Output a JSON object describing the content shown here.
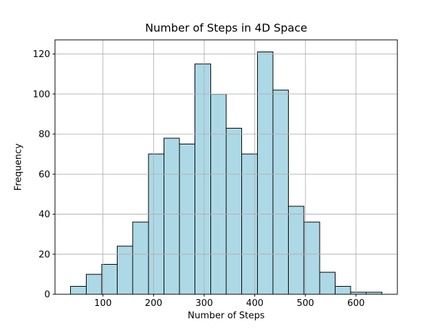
{
  "chart_data": {
    "type": "bar",
    "subtype": "histogram",
    "title": "Number of Steps in 4D Space",
    "xlabel": "Number of Steps",
    "ylabel": "Frequency",
    "bin_edges": [
      36,
      66.75,
      97.5,
      128.25,
      159,
      189.75,
      220.5,
      251.25,
      282,
      312.75,
      343.5,
      374.25,
      405,
      435.75,
      466.5,
      497.25,
      528,
      558.75,
      589.5,
      620.25,
      651
    ],
    "counts": [
      4,
      10,
      15,
      24,
      36,
      70,
      78,
      75,
      115,
      100,
      83,
      70,
      121,
      102,
      44,
      36,
      11,
      4,
      1,
      1
    ],
    "total_samples": 1000,
    "xlim": [
      5.25,
      681.75
    ],
    "ylim": [
      0,
      127.05
    ],
    "xticks": [
      100,
      200,
      300,
      400,
      500,
      600
    ],
    "yticks": [
      0,
      20,
      40,
      60,
      80,
      100,
      120
    ],
    "grid": true,
    "grid_above_bars": true,
    "legend": "none",
    "bar_fill": "#ADD8E6",
    "bar_edge": "#000000",
    "grid_color": "#b0b0b0",
    "axis_color": "#000000",
    "background": "#ffffff"
  }
}
